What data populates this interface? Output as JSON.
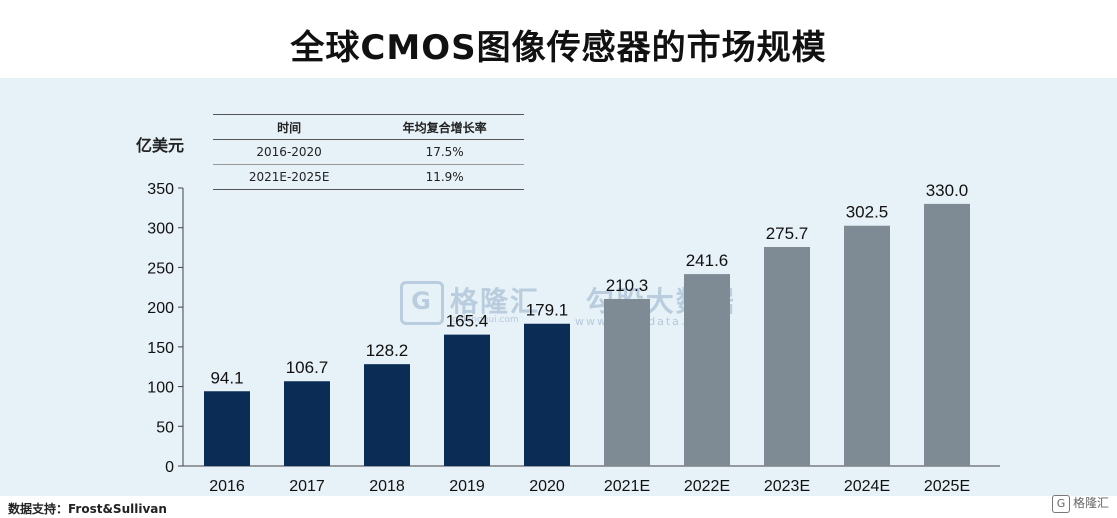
{
  "title": "全球CMOS图像传感器的市场规模",
  "unit_label": "亿美元",
  "cagr_table": {
    "headers": [
      "时间",
      "年均复合增长率"
    ],
    "rows": [
      [
        "2016-2020",
        "17.5%"
      ],
      [
        "2021E-2025E",
        "11.9%"
      ]
    ]
  },
  "source": "数据支持：Frost&Sullivan",
  "watermark": {
    "logo_icon": "G",
    "text": "格隆汇",
    "text2": "勾股大数据",
    "sub": "www.gogudata.com",
    "sub_left": "gelonghui.com"
  },
  "corner_logo": {
    "icon": "G",
    "text": "格隆汇"
  },
  "colors": {
    "actual": "#0b2d55",
    "forecast": "#7e8b94",
    "panel": "#e7f1f8"
  },
  "chart_data": {
    "type": "bar",
    "categories": [
      "2016",
      "2017",
      "2018",
      "2019",
      "2020",
      "2021E",
      "2022E",
      "2023E",
      "2024E",
      "2025E"
    ],
    "values": [
      94.1,
      106.7,
      128.2,
      165.4,
      179.1,
      210.3,
      241.6,
      275.7,
      302.5,
      330.0
    ],
    "value_labels": [
      "94.1",
      "106.7",
      "128.2",
      "165.4",
      "179.1",
      "210.3",
      "241.6",
      "275.7",
      "302.5",
      "330.0"
    ],
    "forecast": [
      false,
      false,
      false,
      false,
      false,
      true,
      true,
      true,
      true,
      true
    ],
    "yticks": [
      "0",
      "50",
      "100",
      "150",
      "200",
      "250",
      "300",
      "350"
    ],
    "ylim": [
      0,
      350
    ],
    "grid": false,
    "legend": "none"
  }
}
